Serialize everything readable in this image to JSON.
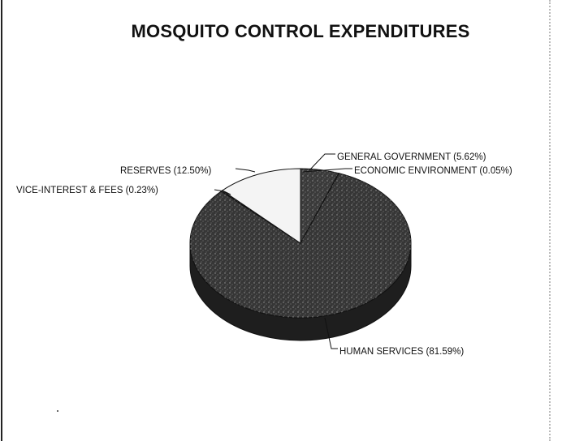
{
  "chart_data": {
    "type": "pie",
    "title": "MOSQUITO CONTROL EXPENDITURES",
    "three_d": true,
    "slices": [
      {
        "label": "GENERAL GOVERNMENT (5.62%)",
        "value": 5.62,
        "color": "#3a3a3a"
      },
      {
        "label": "ECONOMIC ENVIRONMENT (0.05%)",
        "value": 0.05,
        "color": "#2e2e2e"
      },
      {
        "label": "HUMAN SERVICES (81.59%)",
        "value": 81.59,
        "color": "#363636"
      },
      {
        "label": "VICE-INTEREST & FEES (0.23%)",
        "value": 0.23,
        "color": "#2a2a2a"
      },
      {
        "label": "RESERVES (12.50%)",
        "value": 12.5,
        "color": "#f4f4f4"
      }
    ]
  }
}
